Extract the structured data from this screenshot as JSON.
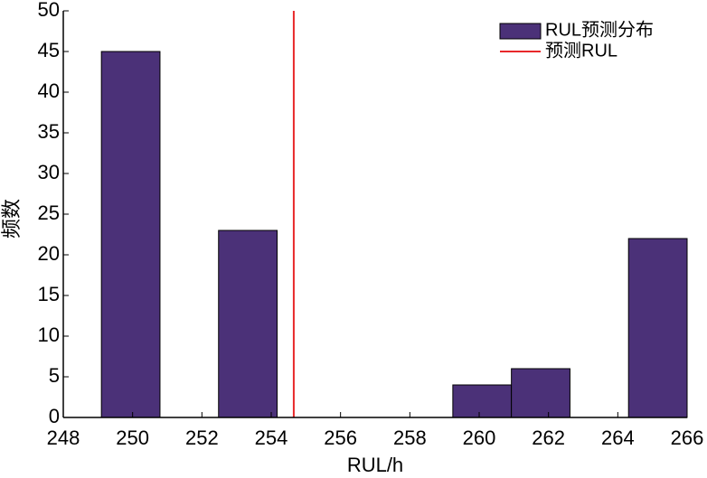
{
  "chart_data": {
    "type": "histogram",
    "xlabel": "RUL/h",
    "ylabel": "频数",
    "bins": [
      249.1,
      250.79,
      252.48,
      254.17,
      255.86,
      257.55,
      259.24,
      260.93,
      262.62,
      264.31,
      266.0
    ],
    "series": [
      {
        "name": "RUL预测分布",
        "color": "#4b3178",
        "values": [
          45,
          0,
          23,
          0,
          0,
          0,
          4,
          6,
          0,
          22
        ]
      }
    ],
    "reference_line": {
      "name": "预测RUL",
      "value": 254.65,
      "color": "#e8282a"
    },
    "xlim": [
      248,
      266
    ],
    "xticks": [
      248,
      250,
      252,
      254,
      256,
      258,
      260,
      262,
      264,
      266
    ],
    "ylim": [
      0,
      50
    ],
    "yticks": [
      0,
      5,
      10,
      15,
      20,
      25,
      30,
      35,
      40,
      45,
      50
    ],
    "grid": false,
    "legend": "upper right"
  }
}
